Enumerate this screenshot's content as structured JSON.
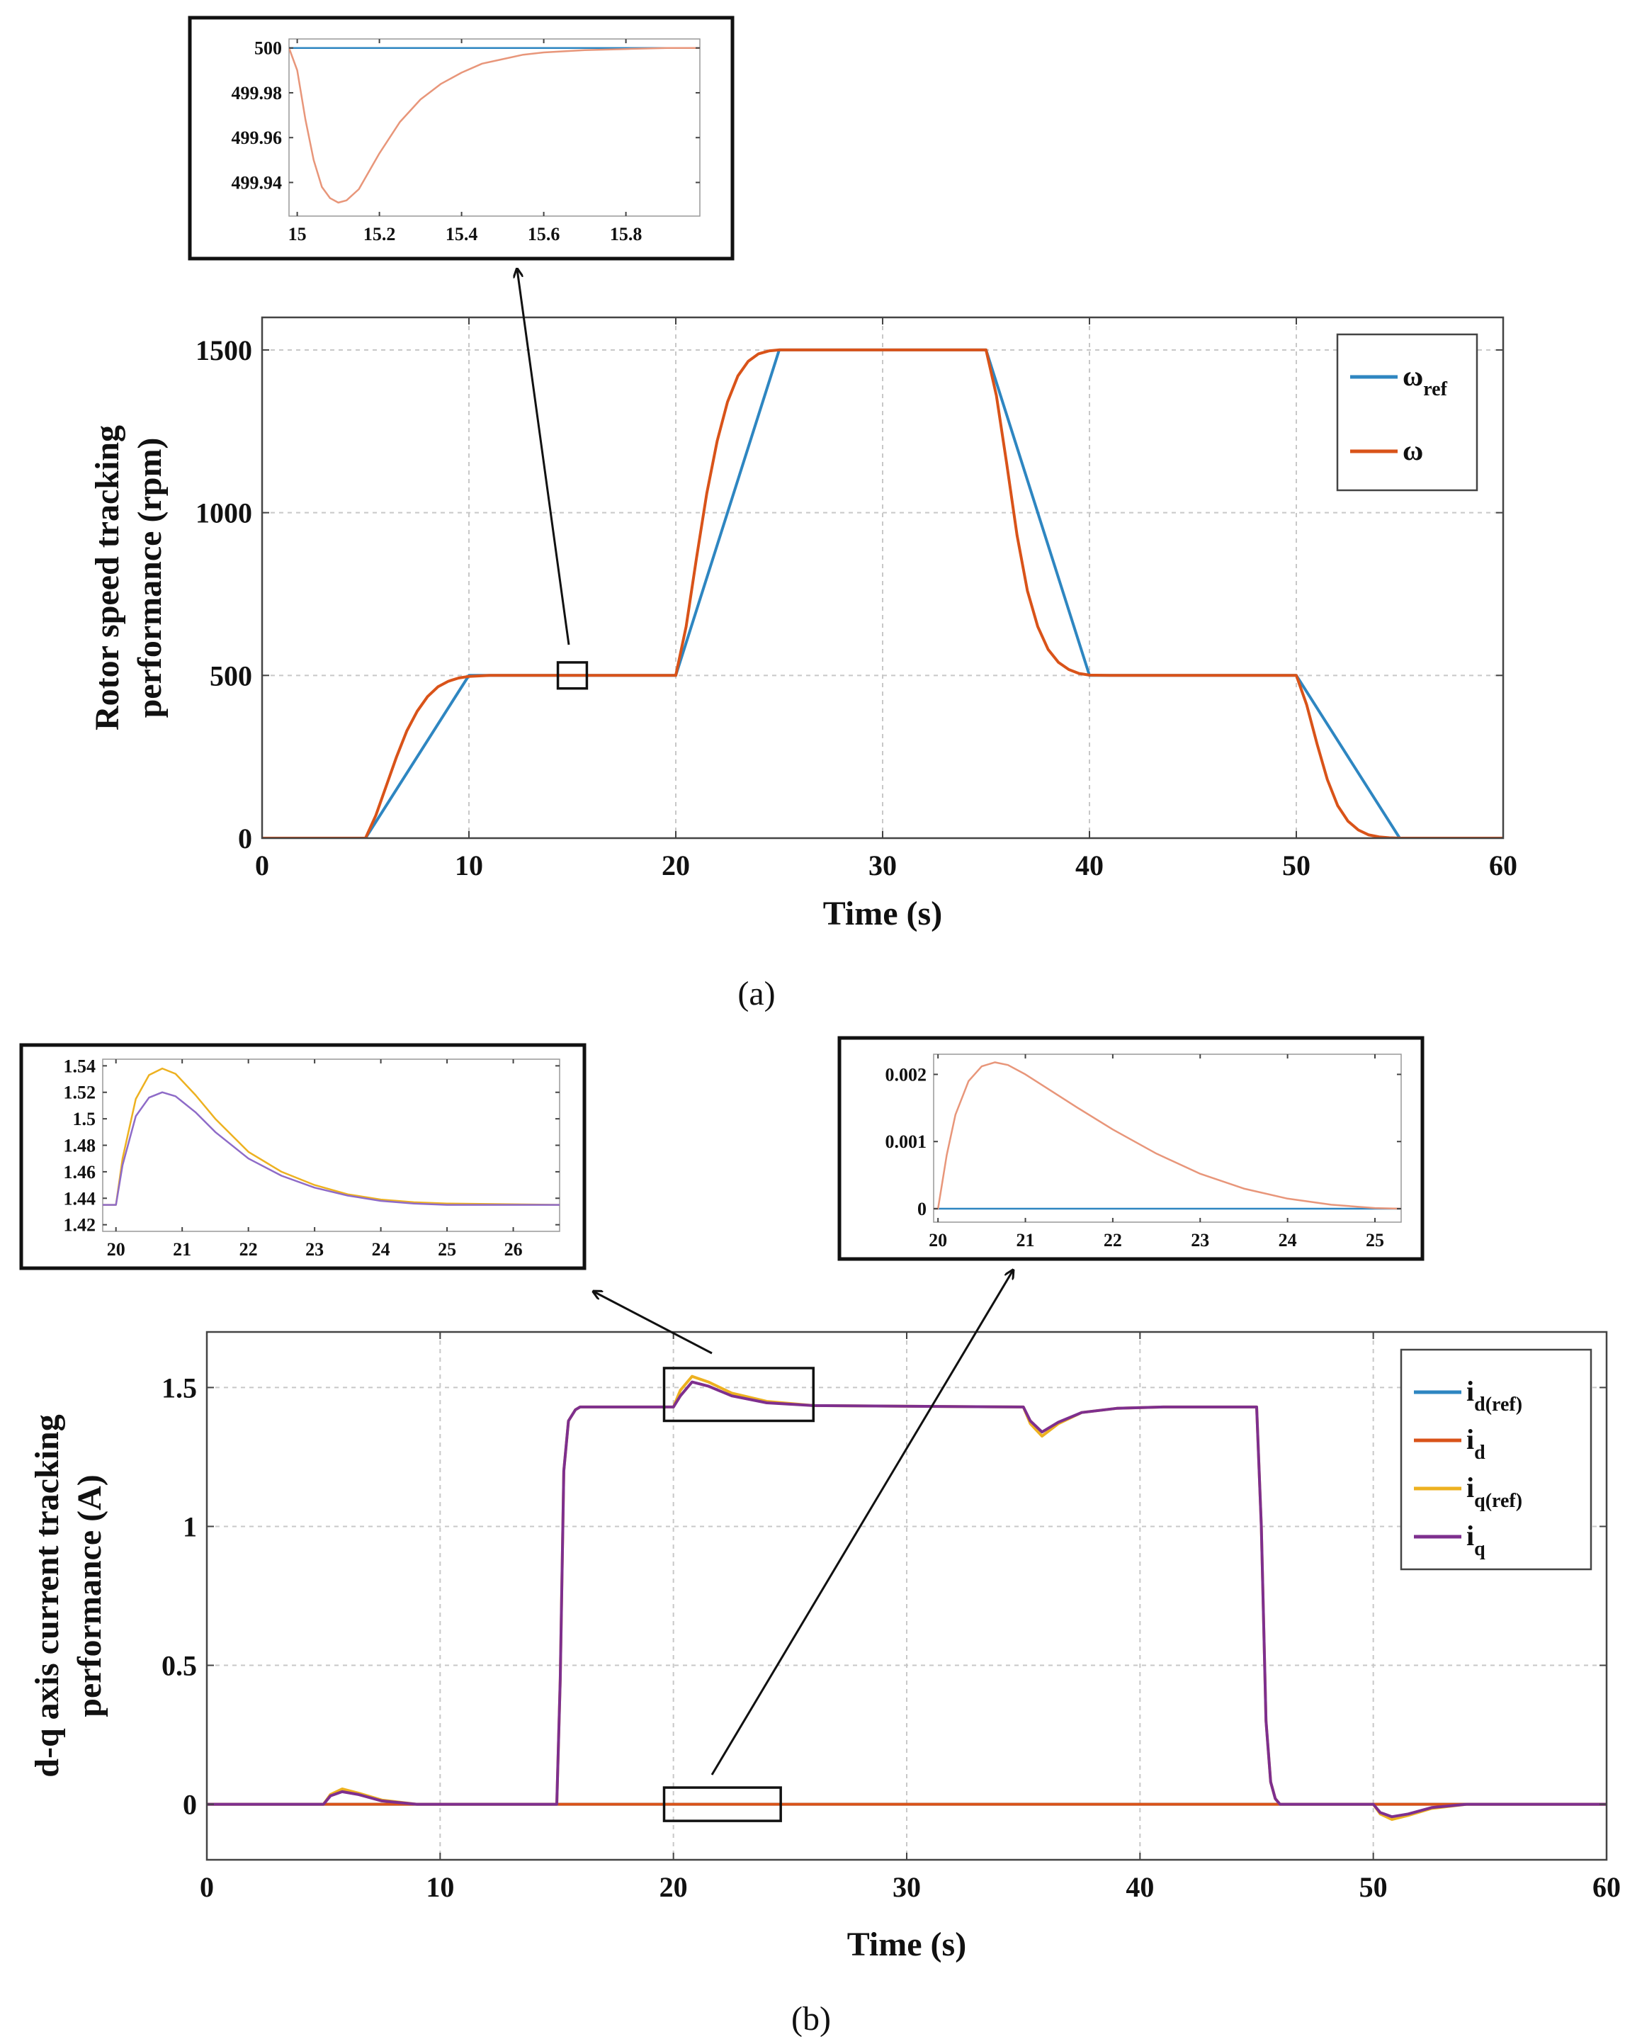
{
  "chart_data": [
    {
      "id": "a",
      "type": "line",
      "caption": "(a)",
      "xlabel": "Time (s)",
      "ylabel_lines": [
        "Rotor speed tracking",
        "performance (rpm)"
      ],
      "xlim": [
        0,
        60
      ],
      "ylim": [
        0,
        1600
      ],
      "xticks": [
        0,
        10,
        20,
        30,
        40,
        50,
        60
      ],
      "yticks": [
        0,
        500,
        1000,
        1500
      ],
      "grid": true,
      "legend_position": "top-right",
      "series": [
        {
          "name": "ω",
          "sub": "ref",
          "color": "#2E86C1",
          "x": [
            0,
            5,
            10,
            20,
            25,
            35,
            40,
            50,
            55,
            60
          ],
          "y": [
            0,
            0,
            500,
            500,
            1500,
            1500,
            500,
            500,
            0,
            0
          ]
        },
        {
          "name": "ω",
          "sub": "",
          "color": "#D95319",
          "x": [
            0,
            5,
            5.5,
            6,
            6.5,
            7,
            7.5,
            8,
            8.5,
            9,
            9.5,
            10,
            11,
            20,
            20.5,
            21,
            21.5,
            22,
            22.5,
            23,
            23.5,
            24,
            24.5,
            25,
            26,
            35,
            35.5,
            36,
            36.5,
            37,
            37.5,
            38,
            38.5,
            39,
            39.5,
            40,
            41,
            50,
            50.5,
            51,
            51.5,
            52,
            52.5,
            53,
            53.5,
            54,
            54.5,
            55,
            60
          ],
          "y": [
            0,
            0,
            70,
            160,
            250,
            330,
            390,
            435,
            465,
            482,
            492,
            497,
            500,
            500,
            650,
            860,
            1060,
            1220,
            1340,
            1420,
            1465,
            1488,
            1497,
            1500,
            1500,
            1500,
            1360,
            1150,
            930,
            760,
            650,
            580,
            540,
            518,
            506,
            501,
            500,
            500,
            410,
            290,
            180,
            100,
            52,
            25,
            10,
            4,
            1,
            0,
            0
          ]
        }
      ],
      "zoom_box_data": {
        "x": [
          14.3,
          15.7
        ],
        "y": [
          460,
          540
        ]
      },
      "inset": {
        "xlim": [
          14.98,
          15.98
        ],
        "ylim": [
          499.925,
          500.004
        ],
        "xticks": [
          15,
          15.2,
          15.4,
          15.6,
          15.8
        ],
        "yticks": [
          499.94,
          499.96,
          499.98,
          500
        ],
        "series": [
          {
            "name": "ω_ref",
            "color": "#2E86C1",
            "x": [
              14.98,
              15.98
            ],
            "y": [
              500,
              500
            ]
          },
          {
            "name": "ω",
            "color": "#E8967A",
            "x": [
              14.98,
              15.0,
              15.02,
              15.04,
              15.06,
              15.08,
              15.1,
              15.12,
              15.15,
              15.2,
              15.25,
              15.3,
              15.35,
              15.4,
              15.45,
              15.5,
              15.55,
              15.6,
              15.7,
              15.8,
              15.9,
              15.98
            ],
            "y": [
              500,
              499.99,
              499.968,
              499.95,
              499.938,
              499.933,
              499.931,
              499.932,
              499.937,
              499.953,
              499.967,
              499.977,
              499.984,
              499.989,
              499.993,
              499.995,
              499.997,
              499.998,
              499.999,
              499.9995,
              500,
              500
            ]
          }
        ]
      }
    },
    {
      "id": "b",
      "type": "line",
      "caption": "(b)",
      "xlabel": "Time (s)",
      "ylabel_lines": [
        "d-q axis current tracking",
        "performance (A)"
      ],
      "xlim": [
        0,
        60
      ],
      "ylim": [
        -0.2,
        1.7
      ],
      "xticks": [
        0,
        10,
        20,
        30,
        40,
        50,
        60
      ],
      "yticks": [
        0,
        0.5,
        1,
        1.5
      ],
      "grid": true,
      "legend_position": "top-right",
      "series": [
        {
          "name": "i",
          "sub": "d(ref)",
          "color": "#2E86C1",
          "x": [
            0,
            60
          ],
          "y": [
            0,
            0
          ]
        },
        {
          "name": "i",
          "sub": "d",
          "color": "#D95319",
          "x": [
            0,
            60
          ],
          "y": [
            0,
            0
          ]
        },
        {
          "name": "i",
          "sub": "q(ref)",
          "color": "#EDB120",
          "x": [
            0,
            5,
            5.3,
            5.8,
            6.5,
            7.5,
            9,
            15,
            15.15,
            15.3,
            15.5,
            15.8,
            16,
            20,
            20.3,
            20.8,
            21.5,
            22.5,
            24,
            26,
            35,
            35.3,
            35.8,
            36.5,
            37.5,
            39,
            41,
            45,
            45.2,
            45.4,
            45.6,
            45.8,
            46,
            50,
            50.3,
            50.8,
            51.5,
            52.5,
            54,
            60
          ],
          "y": [
            0,
            0,
            0.035,
            0.055,
            0.04,
            0.015,
            0,
            0,
            0.45,
            1.2,
            1.38,
            1.42,
            1.43,
            1.43,
            1.49,
            1.54,
            1.52,
            1.48,
            1.45,
            1.435,
            1.43,
            1.37,
            1.325,
            1.37,
            1.41,
            1.425,
            1.43,
            1.43,
            1.0,
            0.3,
            0.08,
            0.02,
            0,
            0,
            -0.035,
            -0.055,
            -0.04,
            -0.015,
            0,
            0
          ]
        },
        {
          "name": "i",
          "sub": "q",
          "color": "#7E2F8E",
          "x": [
            0,
            5,
            5.3,
            5.8,
            6.5,
            7.5,
            9,
            15,
            15.15,
            15.3,
            15.5,
            15.8,
            16,
            20,
            20.3,
            20.8,
            21.5,
            22.5,
            24,
            26,
            35,
            35.3,
            35.8,
            36.5,
            37.5,
            39,
            41,
            45,
            45.2,
            45.4,
            45.6,
            45.8,
            46,
            50,
            50.3,
            50.8,
            51.5,
            52.5,
            54,
            60
          ],
          "y": [
            0,
            0,
            0.03,
            0.045,
            0.035,
            0.012,
            0,
            0,
            0.45,
            1.2,
            1.38,
            1.42,
            1.43,
            1.43,
            1.47,
            1.52,
            1.505,
            1.47,
            1.445,
            1.435,
            1.43,
            1.38,
            1.34,
            1.375,
            1.41,
            1.425,
            1.43,
            1.43,
            1.0,
            0.3,
            0.08,
            0.02,
            0,
            0,
            -0.03,
            -0.045,
            -0.035,
            -0.012,
            0,
            0
          ]
        }
      ],
      "zoom_box_data": {
        "x": [
          19.6,
          26.0
        ],
        "y": [
          1.38,
          1.57
        ]
      },
      "zoom_box2_data": {
        "x": [
          19.6,
          24.6
        ],
        "y": [
          -0.06,
          0.06
        ]
      },
      "inset": {
        "xlim": [
          19.8,
          26.7
        ],
        "ylim": [
          1.415,
          1.545
        ],
        "xticks": [
          20,
          21,
          22,
          23,
          24,
          25,
          26
        ],
        "yticks": [
          1.42,
          1.44,
          1.46,
          1.48,
          1.5,
          1.52,
          1.54
        ],
        "series": [
          {
            "name": "i_q(ref)",
            "color": "#EDB120",
            "x": [
              19.8,
              20.0,
              20.1,
              20.3,
              20.5,
              20.7,
              20.9,
              21.2,
              21.5,
              22.0,
              22.5,
              23.0,
              23.5,
              24.0,
              24.5,
              25.0,
              26.7
            ],
            "y": [
              1.435,
              1.435,
              1.47,
              1.515,
              1.533,
              1.538,
              1.534,
              1.518,
              1.5,
              1.475,
              1.46,
              1.45,
              1.443,
              1.439,
              1.437,
              1.436,
              1.435
            ]
          },
          {
            "name": "i_q",
            "color": "#8E6BC8",
            "x": [
              19.8,
              20.0,
              20.1,
              20.3,
              20.5,
              20.7,
              20.9,
              21.2,
              21.5,
              22.0,
              22.5,
              23.0,
              23.5,
              24.0,
              24.5,
              25.0,
              26.7
            ],
            "y": [
              1.435,
              1.435,
              1.465,
              1.502,
              1.516,
              1.52,
              1.517,
              1.505,
              1.49,
              1.47,
              1.457,
              1.448,
              1.442,
              1.438,
              1.436,
              1.435,
              1.435
            ]
          }
        ]
      },
      "inset2": {
        "xlim": [
          19.95,
          25.3
        ],
        "ylim": [
          -0.0002,
          0.0023
        ],
        "xticks": [
          20,
          21,
          22,
          23,
          24,
          25
        ],
        "yticks": [
          0,
          0.001,
          0.002
        ],
        "series": [
          {
            "name": "i_d(ref)",
            "color": "#2E86C1",
            "x": [
              19.95,
              25.3
            ],
            "y": [
              0,
              0
            ]
          },
          {
            "name": "i_d",
            "color": "#E8967A",
            "x": [
              19.95,
              20.0,
              20.1,
              20.2,
              20.35,
              20.5,
              20.65,
              20.8,
              21.0,
              21.3,
              21.6,
              22.0,
              22.5,
              23.0,
              23.5,
              24.0,
              24.5,
              25.0,
              25.3
            ],
            "y": [
              0,
              0,
              0.0008,
              0.0014,
              0.0019,
              0.00212,
              0.00218,
              0.00214,
              0.002,
              0.00175,
              0.0015,
              0.00118,
              0.00082,
              0.00052,
              0.0003,
              0.00015,
              6e-05,
              1e-05,
              0
            ]
          }
        ]
      }
    }
  ]
}
